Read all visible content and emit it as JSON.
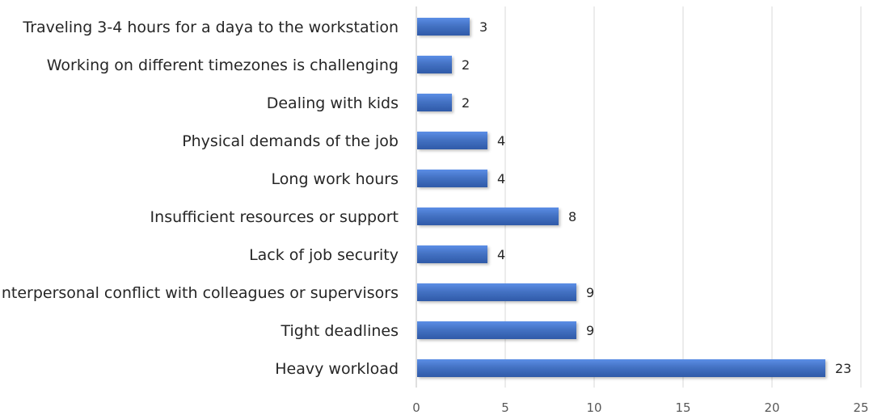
{
  "chart_data": {
    "type": "bar",
    "orientation": "horizontal",
    "title": "",
    "xlabel": "",
    "ylabel": "",
    "categories": [
      "Traveling 3-4 hours for a daya to the workstation",
      "Working on different timezones is challenging",
      "Dealing with kids",
      "Physical demands of the job",
      "Long work hours",
      "Insufficient resources or support",
      "Lack of job security",
      "Interpersonal conflict with colleagues or supervisors",
      "Tight deadlines",
      "Heavy workload"
    ],
    "values": [
      3,
      2,
      2,
      4,
      4,
      8,
      4,
      9,
      9,
      23
    ],
    "xlim": [
      0,
      25
    ],
    "xticks": [
      0,
      5,
      10,
      15,
      20,
      25
    ],
    "grid": "vertical",
    "legend": "none",
    "bar_color": "#4472c4",
    "data_labels": true
  }
}
